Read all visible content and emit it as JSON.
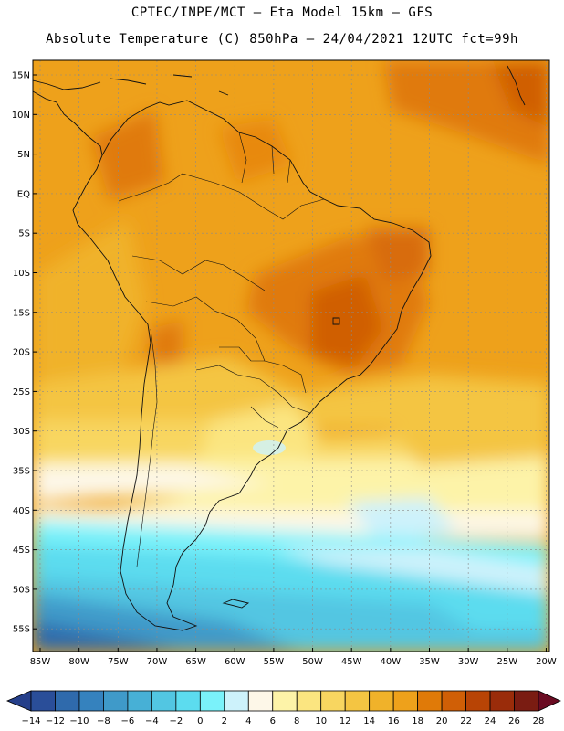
{
  "header": {
    "line1": "CPTEC/INPE/MCT –  Eta Model 15km – GFS",
    "line2": "Absolute Temperature (C) 850hPa – 24/04/2021 12UTC fct=99h"
  },
  "map": {
    "lat_labels": [
      "15N",
      "10N",
      "5N",
      "EQ",
      "5S",
      "10S",
      "15S",
      "20S",
      "25S",
      "30S",
      "35S",
      "40S",
      "45S",
      "50S",
      "55S"
    ],
    "lon_labels": [
      "85W",
      "80W",
      "75W",
      "70W",
      "65W",
      "60W",
      "55W",
      "50W",
      "45W",
      "40W",
      "35W",
      "30W",
      "25W",
      "20W"
    ]
  },
  "colorbar": {
    "labels": [
      "-14",
      "-12",
      "-10",
      "-8",
      "-6",
      "-4",
      "-2",
      "0",
      "2",
      "4",
      "6",
      "8",
      "10",
      "12",
      "14",
      "16",
      "18",
      "20",
      "22",
      "24",
      "26",
      "28"
    ],
    "colors": [
      "#2a4e99",
      "#2f6aac",
      "#3582be",
      "#3f9ac9",
      "#47b0d6",
      "#52c6e2",
      "#5cdcef",
      "#7af2fa",
      "#cdf2fb",
      "#fdf7e8",
      "#fdf3a8",
      "#fbe580",
      "#f8d660",
      "#f4c542",
      "#f0b22a",
      "#eea11b",
      "#e07a08",
      "#d05f06",
      "#b84405",
      "#9a2c0a",
      "#7a1c12"
    ],
    "under_color": "#253f8a",
    "over_color": "#6a0b22"
  }
}
